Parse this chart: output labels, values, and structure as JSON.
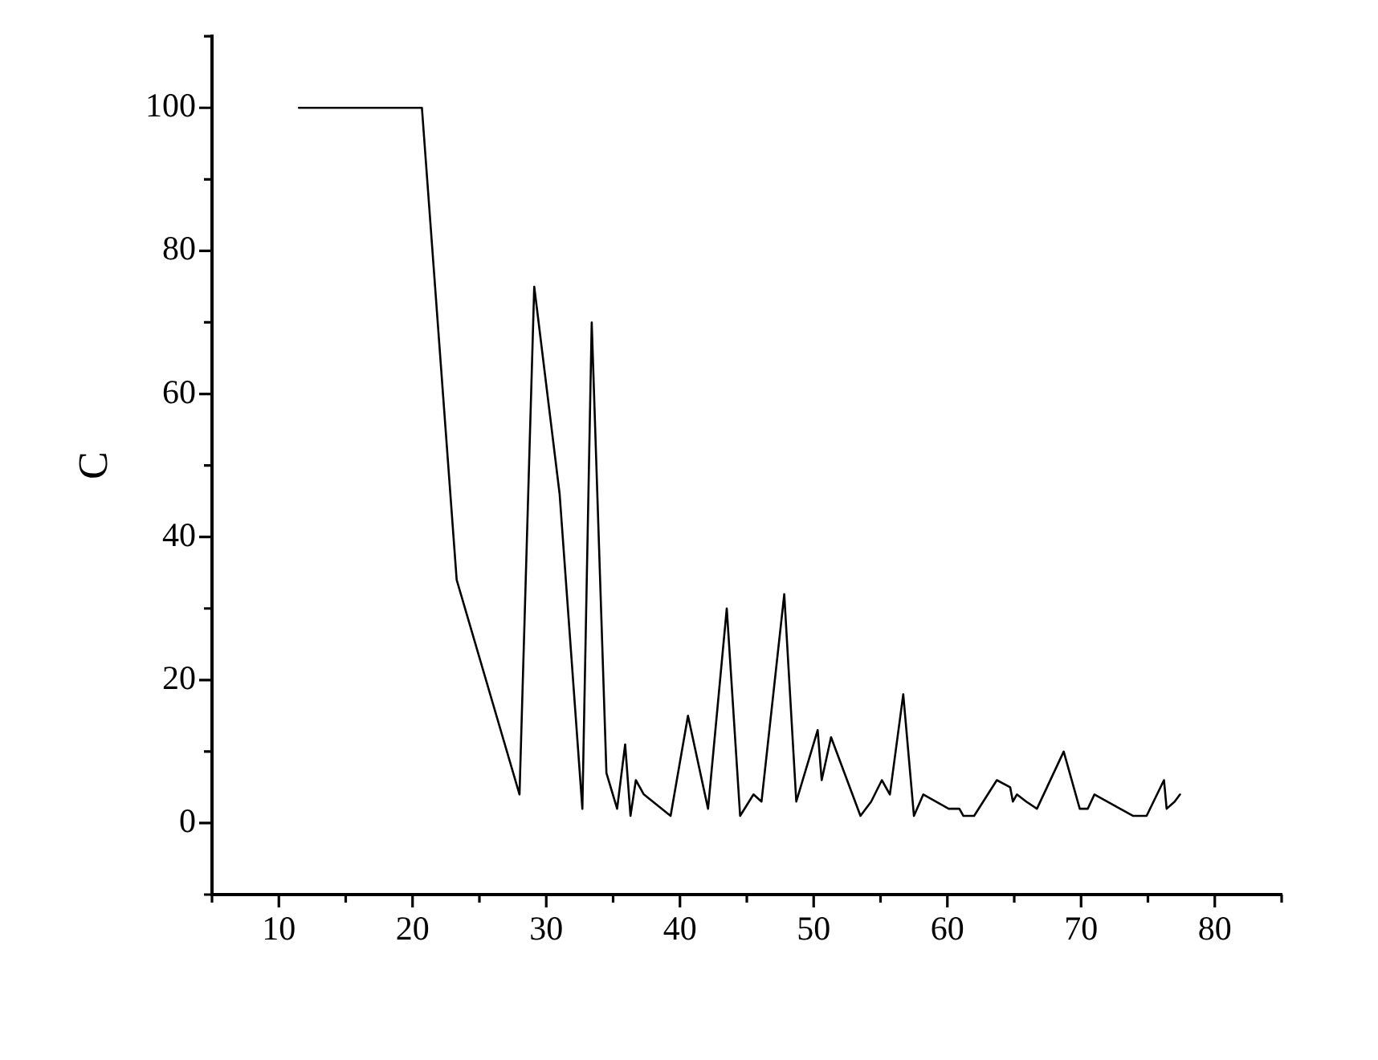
{
  "chart_data": {
    "type": "line",
    "ylabel": "C",
    "color": "#000000",
    "marker": "none",
    "line_style": "solid",
    "legend": false,
    "grid": false,
    "x": [
      11.5,
      20.7,
      23.3,
      28.0,
      29.1,
      31.0,
      32.7,
      33.4,
      34.5,
      35.3,
      35.9,
      36.3,
      36.7,
      37.3,
      39.3,
      40.6,
      42.1,
      43.5,
      44.5,
      45.5,
      46.1,
      47.8,
      48.7,
      50.3,
      50.6,
      51.3,
      53.5,
      54.3,
      55.1,
      55.7,
      56.7,
      57.5,
      58.2,
      60.1,
      60.9,
      61.2,
      62.0,
      63.7,
      64.7,
      64.9,
      65.2,
      65.9,
      66.7,
      68.7,
      69.9,
      70.5,
      71.0,
      73.9,
      74.9,
      76.2,
      76.4,
      77.0,
      77.4
    ],
    "values": [
      100,
      100,
      34,
      4,
      75,
      46,
      2,
      70,
      7,
      2,
      11,
      1,
      6,
      4,
      1,
      15,
      2,
      30,
      1,
      4,
      3,
      32,
      3,
      13,
      6,
      12,
      1,
      3,
      6,
      4,
      18,
      1,
      4,
      2,
      2,
      1,
      1,
      6,
      5,
      3,
      4,
      3,
      2,
      10,
      2,
      2,
      4,
      1,
      1,
      6,
      2,
      3,
      4
    ],
    "xlim": [
      5,
      85
    ],
    "ylim": [
      -10,
      110
    ],
    "xticks": [
      {
        "value": 5,
        "label": null
      },
      10,
      {
        "value": 15,
        "label": null
      },
      20,
      {
        "value": 25,
        "label": null
      },
      30,
      {
        "value": 35,
        "label": null
      },
      40,
      {
        "value": 45,
        "label": null
      },
      50,
      {
        "value": 55,
        "label": null
      },
      60,
      {
        "value": 65,
        "label": null
      },
      70,
      {
        "value": 75,
        "label": null
      },
      80,
      {
        "value": 85,
        "label": null
      }
    ],
    "yticks": [
      {
        "value": -10,
        "label": null
      },
      0,
      {
        "value": 10,
        "label": null
      },
      20,
      {
        "value": 30,
        "label": null
      },
      40,
      {
        "value": 50,
        "label": null
      },
      60,
      {
        "value": 70,
        "label": null
      },
      80,
      {
        "value": 90,
        "label": null
      },
      100,
      {
        "value": 110,
        "label": null
      }
    ]
  }
}
